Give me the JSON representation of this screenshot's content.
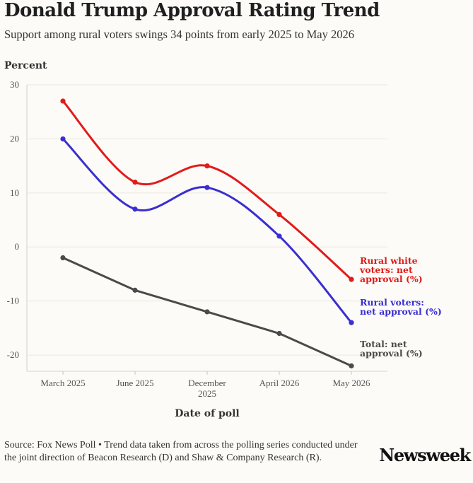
{
  "header": {
    "title": "Donald Trump Approval Rating Trend",
    "subtitle": "Support among rural voters swings 34 points from early 2025 to May 2026"
  },
  "footer": {
    "source": "Source: Fox News Poll • Trend data taken from across the polling series conducted under the joint direction of Beacon Research (D) and Shaw & Company Research (R).",
    "logo": "Newsweek"
  },
  "chart_data": {
    "type": "line",
    "title": "Donald Trump Approval Rating Trend",
    "subtitle": "Support among rural voters swings 34 points from early 2025 to May 2026",
    "ylabel": "Percent",
    "xlabel": "Date of poll",
    "categories": [
      "March 2025",
      "June 2025",
      "December 2025",
      "April 2026",
      "May 2026"
    ],
    "ylim": [
      -23,
      30
    ],
    "yticks": [
      30,
      20,
      10,
      0,
      -10,
      -20
    ],
    "grid": true,
    "series": [
      {
        "name": "Rural white voters: net approval (%)",
        "color": "#e01b1b",
        "values": [
          27,
          12,
          15,
          6,
          -6
        ]
      },
      {
        "name": "Rural voters: net approval (%)",
        "color": "#3a2ed1",
        "values": [
          20,
          7,
          11,
          2,
          -14
        ]
      },
      {
        "name": "Total: net approval (%)",
        "color": "#4a4a4a",
        "values": [
          -2,
          -8,
          -12,
          -16,
          -22
        ]
      }
    ]
  }
}
